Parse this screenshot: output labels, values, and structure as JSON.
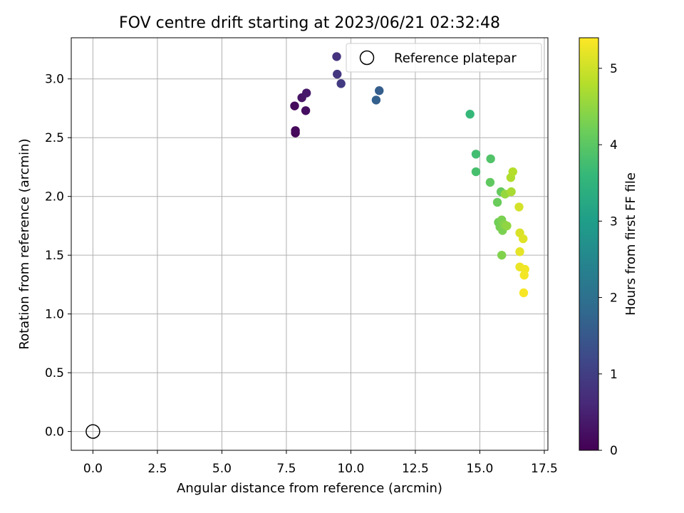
{
  "chart_data": {
    "type": "scatter",
    "title": "FOV centre drift starting at 2023/06/21 02:32:48",
    "xlabel": "Angular distance from reference (arcmin)",
    "ylabel": "Rotation from reference (arcmin)",
    "xlim": [
      -0.84,
      17.64
    ],
    "ylim": [
      -0.16,
      3.35
    ],
    "x_ticks": [
      0.0,
      2.5,
      5.0,
      7.5,
      10.0,
      12.5,
      15.0,
      17.5
    ],
    "x_tick_labels": [
      "0.0",
      "2.5",
      "5.0",
      "7.5",
      "10.0",
      "12.5",
      "15.0",
      "17.5"
    ],
    "y_ticks": [
      0.0,
      0.5,
      1.0,
      1.5,
      2.0,
      2.5,
      3.0
    ],
    "y_tick_labels": [
      "0.0",
      "0.5",
      "1.0",
      "1.5",
      "2.0",
      "2.5",
      "3.0"
    ],
    "grid": true,
    "legend": {
      "placement": "top-right",
      "entries": [
        "Reference platepar"
      ]
    },
    "reference_point": {
      "x": 0.0,
      "y": 0.0,
      "style": "open-circle"
    },
    "colorbar": {
      "label": "Hours from first FF file",
      "range": [
        0,
        5.4
      ],
      "ticks": [
        0,
        1,
        2,
        3,
        4,
        5
      ],
      "tick_labels": [
        "0",
        "1",
        "2",
        "3",
        "4",
        "5"
      ],
      "colormap": "viridis"
    },
    "colormap_stops": [
      "#440154",
      "#482878",
      "#3e4989",
      "#31688e",
      "#26828e",
      "#1f9e89",
      "#35b779",
      "#6ece58",
      "#b5de2b",
      "#fde725"
    ],
    "points": [
      {
        "x": 7.85,
        "y": 2.54,
        "c": 0.05
      },
      {
        "x": 7.85,
        "y": 2.56,
        "c": 0.1
      },
      {
        "x": 7.82,
        "y": 2.77,
        "c": 0.15
      },
      {
        "x": 8.25,
        "y": 2.73,
        "c": 0.2
      },
      {
        "x": 8.1,
        "y": 2.84,
        "c": 0.3
      },
      {
        "x": 8.28,
        "y": 2.88,
        "c": 0.35
      },
      {
        "x": 9.45,
        "y": 3.19,
        "c": 0.8
      },
      {
        "x": 9.47,
        "y": 3.04,
        "c": 0.85
      },
      {
        "x": 9.62,
        "y": 2.96,
        "c": 0.95
      },
      {
        "x": 11.1,
        "y": 2.9,
        "c": 1.6
      },
      {
        "x": 10.98,
        "y": 2.82,
        "c": 1.65
      },
      {
        "x": 14.62,
        "y": 2.7,
        "c": 3.6
      },
      {
        "x": 14.85,
        "y": 2.36,
        "c": 3.75
      },
      {
        "x": 14.85,
        "y": 2.21,
        "c": 3.8
      },
      {
        "x": 15.42,
        "y": 2.32,
        "c": 3.9
      },
      {
        "x": 15.4,
        "y": 2.12,
        "c": 4.05
      },
      {
        "x": 15.82,
        "y": 2.04,
        "c": 4.1
      },
      {
        "x": 15.68,
        "y": 1.95,
        "c": 4.15
      },
      {
        "x": 15.72,
        "y": 1.78,
        "c": 4.2
      },
      {
        "x": 15.78,
        "y": 1.74,
        "c": 4.25
      },
      {
        "x": 15.85,
        "y": 1.8,
        "c": 4.3
      },
      {
        "x": 15.88,
        "y": 1.71,
        "c": 4.3
      },
      {
        "x": 15.85,
        "y": 1.5,
        "c": 4.35
      },
      {
        "x": 15.95,
        "y": 1.76,
        "c": 4.4
      },
      {
        "x": 16.05,
        "y": 1.75,
        "c": 4.5
      },
      {
        "x": 15.98,
        "y": 2.02,
        "c": 4.55
      },
      {
        "x": 16.22,
        "y": 2.04,
        "c": 4.7
      },
      {
        "x": 16.2,
        "y": 2.16,
        "c": 4.75
      },
      {
        "x": 16.28,
        "y": 2.21,
        "c": 4.8
      },
      {
        "x": 16.52,
        "y": 1.91,
        "c": 5.05
      },
      {
        "x": 16.55,
        "y": 1.69,
        "c": 5.1
      },
      {
        "x": 16.68,
        "y": 1.64,
        "c": 5.15
      },
      {
        "x": 16.55,
        "y": 1.53,
        "c": 5.2
      },
      {
        "x": 16.55,
        "y": 1.4,
        "c": 5.25
      },
      {
        "x": 16.75,
        "y": 1.38,
        "c": 5.3
      },
      {
        "x": 16.72,
        "y": 1.33,
        "c": 5.32
      },
      {
        "x": 16.7,
        "y": 1.18,
        "c": 5.35
      }
    ]
  }
}
